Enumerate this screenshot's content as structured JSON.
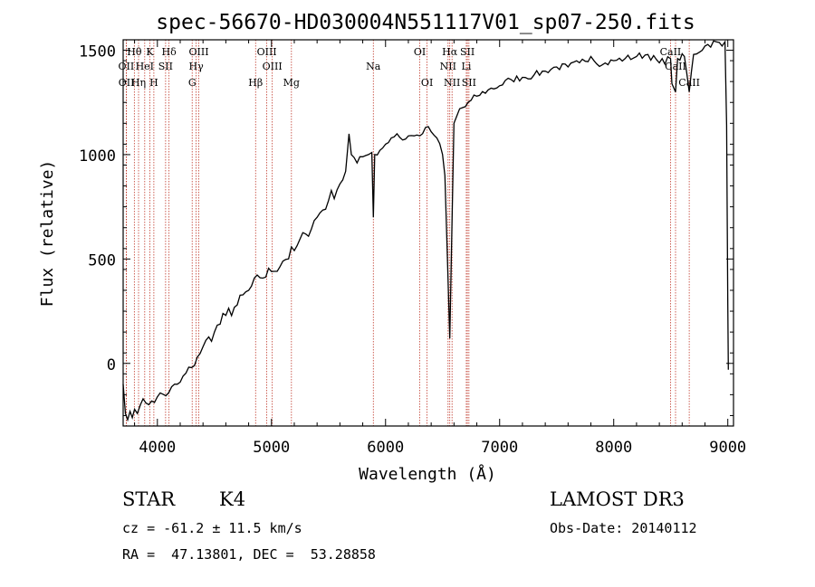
{
  "chart_data": {
    "type": "line",
    "title": "spec-56670-HD030004N551117V01_sp07-250.fits",
    "xlabel": "Wavelength (Å)",
    "ylabel": "Flux (relative)",
    "xlim": [
      3700,
      9050
    ],
    "ylim": [
      -300,
      1550
    ],
    "xticks": [
      4000,
      5000,
      6000,
      7000,
      8000,
      9000
    ],
    "yticks": [
      0,
      500,
      1000,
      1500
    ],
    "series": [
      {
        "name": "spectrum",
        "points": [
          [
            3700,
            -100
          ],
          [
            3720,
            -240
          ],
          [
            3740,
            -270
          ],
          [
            3760,
            -230
          ],
          [
            3780,
            -260
          ],
          [
            3800,
            -220
          ],
          [
            3850,
            -200
          ],
          [
            3900,
            -190
          ],
          [
            3950,
            -180
          ],
          [
            4000,
            -160
          ],
          [
            4100,
            -140
          ],
          [
            4200,
            -90
          ],
          [
            4300,
            -20
          ],
          [
            4350,
            30
          ],
          [
            4400,
            80
          ],
          [
            4500,
            150
          ],
          [
            4600,
            230
          ],
          [
            4700,
            280
          ],
          [
            4800,
            350
          ],
          [
            4900,
            410
          ],
          [
            5000,
            440
          ],
          [
            5100,
            490
          ],
          [
            5200,
            540
          ],
          [
            5300,
            620
          ],
          [
            5400,
            700
          ],
          [
            5500,
            780
          ],
          [
            5600,
            860
          ],
          [
            5650,
            920
          ],
          [
            5680,
            1100
          ],
          [
            5700,
            1000
          ],
          [
            5750,
            960
          ],
          [
            5800,
            990
          ],
          [
            5850,
            1000
          ],
          [
            5880,
            1010
          ],
          [
            5893,
            700
          ],
          [
            5905,
            1000
          ],
          [
            5950,
            1020
          ],
          [
            6000,
            1050
          ],
          [
            6050,
            1080
          ],
          [
            6100,
            1100
          ],
          [
            6150,
            1070
          ],
          [
            6200,
            1090
          ],
          [
            6250,
            1090
          ],
          [
            6300,
            1090
          ],
          [
            6350,
            1130
          ],
          [
            6400,
            1110
          ],
          [
            6450,
            1080
          ],
          [
            6500,
            1000
          ],
          [
            6520,
            900
          ],
          [
            6563,
            120
          ],
          [
            6600,
            1150
          ],
          [
            6650,
            1220
          ],
          [
            6700,
            1230
          ],
          [
            6750,
            1260
          ],
          [
            6800,
            1280
          ],
          [
            6900,
            1310
          ],
          [
            7000,
            1330
          ],
          [
            7100,
            1360
          ],
          [
            7200,
            1370
          ],
          [
            7300,
            1380
          ],
          [
            7400,
            1400
          ],
          [
            7500,
            1420
          ],
          [
            7600,
            1420
          ],
          [
            7700,
            1440
          ],
          [
            7800,
            1470
          ],
          [
            7900,
            1430
          ],
          [
            8000,
            1450
          ],
          [
            8100,
            1460
          ],
          [
            8200,
            1470
          ],
          [
            8300,
            1480
          ],
          [
            8400,
            1440
          ],
          [
            8498,
            1460
          ],
          [
            8510,
            1340
          ],
          [
            8542,
            1300
          ],
          [
            8560,
            1460
          ],
          [
            8620,
            1470
          ],
          [
            8662,
            1300
          ],
          [
            8700,
            1480
          ],
          [
            8800,
            1520
          ],
          [
            8900,
            1540
          ],
          [
            8950,
            1520
          ],
          [
            8975,
            1540
          ],
          [
            8990,
            1140
          ],
          [
            9000,
            280
          ],
          [
            9005,
            -30
          ]
        ]
      }
    ],
    "line_markers": [
      {
        "label": "Hθ",
        "wavelength": 3798,
        "row": 0
      },
      {
        "label": "K",
        "wavelength": 3934,
        "row": 0
      },
      {
        "label": "Hδ",
        "wavelength": 4102,
        "row": 0
      },
      {
        "label": "OIII",
        "wavelength": 4363,
        "row": 0
      },
      {
        "label": "OIII",
        "wavelength": 4959,
        "row": 0
      },
      {
        "label": "OI",
        "wavelength": 6300,
        "row": 0
      },
      {
        "label": "Hα",
        "wavelength": 6563,
        "row": 0
      },
      {
        "label": "SII",
        "wavelength": 6717,
        "row": 0
      },
      {
        "label": "CaII",
        "wavelength": 8498,
        "row": 0
      },
      {
        "label": "OII",
        "wavelength": 3727,
        "row": 1
      },
      {
        "label": "HeI",
        "wavelength": 3889,
        "row": 1
      },
      {
        "label": "SII",
        "wavelength": 4072,
        "row": 1
      },
      {
        "label": "Hγ",
        "wavelength": 4340,
        "row": 1
      },
      {
        "label": "OIII",
        "wavelength": 5007,
        "row": 1
      },
      {
        "label": "Na",
        "wavelength": 5893,
        "row": 1
      },
      {
        "label": "NII",
        "wavelength": 6548,
        "row": 1
      },
      {
        "label": "Li",
        "wavelength": 6708,
        "row": 1
      },
      {
        "label": "CaII",
        "wavelength": 8542,
        "row": 1
      },
      {
        "label": "OII",
        "wavelength": 3729,
        "row": 2
      },
      {
        "label": "Hη",
        "wavelength": 3835,
        "row": 2
      },
      {
        "label": "H",
        "wavelength": 3969,
        "row": 2
      },
      {
        "label": "G",
        "wavelength": 4305,
        "row": 2
      },
      {
        "label": "Hβ",
        "wavelength": 4861,
        "row": 2
      },
      {
        "label": "Mg",
        "wavelength": 5175,
        "row": 2
      },
      {
        "label": "OI",
        "wavelength": 6364,
        "row": 2
      },
      {
        "label": "NII",
        "wavelength": 6583,
        "row": 2
      },
      {
        "label": "SII",
        "wavelength": 6731,
        "row": 2
      },
      {
        "label": "CaII",
        "wavelength": 8662,
        "row": 2
      }
    ]
  },
  "info": {
    "object_class": "STAR",
    "subclass": "K4",
    "survey": "LAMOST DR3",
    "velocity": "cz = -61.2 ± 11.5 km/s",
    "obs_date": "Obs-Date: 20140112",
    "coords": "RA =  47.13801, DEC =  53.28858"
  }
}
